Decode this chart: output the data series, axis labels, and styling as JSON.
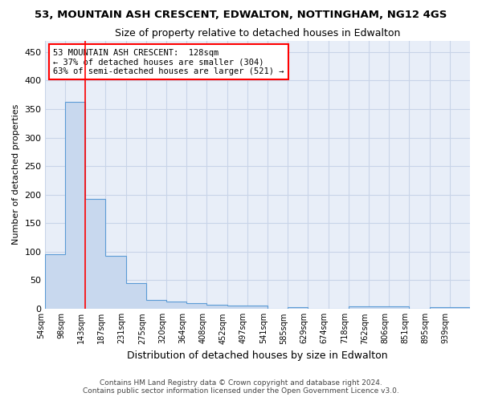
{
  "title": "53, MOUNTAIN ASH CRESCENT, EDWALTON, NOTTINGHAM, NG12 4GS",
  "subtitle": "Size of property relative to detached houses in Edwalton",
  "xlabel": "Distribution of detached houses by size in Edwalton",
  "ylabel": "Number of detached properties",
  "footnote1": "Contains HM Land Registry data © Crown copyright and database right 2024.",
  "footnote2": "Contains public sector information licensed under the Open Government Licence v3.0.",
  "bin_labels": [
    "54sqm",
    "98sqm",
    "143sqm",
    "187sqm",
    "231sqm",
    "275sqm",
    "320sqm",
    "364sqm",
    "408sqm",
    "452sqm",
    "497sqm",
    "541sqm",
    "585sqm",
    "629sqm",
    "674sqm",
    "718sqm",
    "762sqm",
    "806sqm",
    "851sqm",
    "895sqm",
    "939sqm"
  ],
  "bar_values": [
    95,
    363,
    193,
    93,
    45,
    15,
    13,
    10,
    7,
    6,
    5,
    0,
    3,
    0,
    0,
    4,
    4,
    4,
    0,
    3,
    3
  ],
  "bar_color": "#c8d8ee",
  "bar_edge_color": "#5b9bd5",
  "grid_color": "#c8d4e8",
  "background_color": "#e8eef8",
  "annotation_box_text1": "53 MOUNTAIN ASH CRESCENT:  128sqm",
  "annotation_box_text2": "← 37% of detached houses are smaller (304)",
  "annotation_box_text3": "63% of semi-detached houses are larger (521) →",
  "red_line_bin_index": 2,
  "ylim": [
    0,
    470
  ],
  "yticks": [
    0,
    50,
    100,
    150,
    200,
    250,
    300,
    350,
    400,
    450
  ]
}
